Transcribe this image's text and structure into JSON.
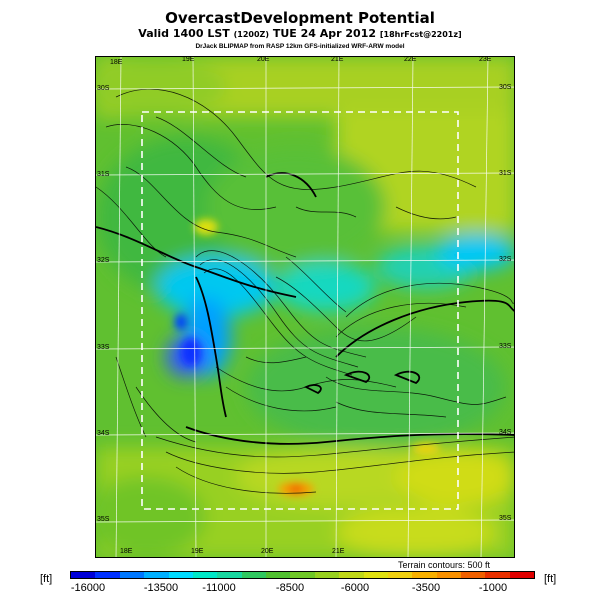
{
  "header": {
    "title": "OvercastDevelopment Potential",
    "valid_main": "Valid 1400 LST",
    "valid_code": "(1200Z)",
    "valid_date": "TUE 24 Apr 2012",
    "forecast": "[18hrFcst@2201z]",
    "credit": "DrJack BLIPMAP from RASP 12km GFS-initialized WRF-ARW model"
  },
  "map": {
    "lon_labels_top": [
      "18E",
      "19E",
      "20E",
      "21E",
      "22E",
      "23E"
    ],
    "lon_labels_bottom": [
      "18E",
      "19E",
      "20E",
      "21E"
    ],
    "lat_labels_left": [
      "30S",
      "31S",
      "32S",
      "33S",
      "34S",
      "35S"
    ],
    "lat_labels_right": [
      "30S",
      "31S",
      "32S",
      "33S",
      "34S",
      "35S"
    ],
    "terrain_note": "Terrain contours: 500 ft"
  },
  "legend": {
    "unit_left": "[ft]",
    "unit_right": "[ft]",
    "ticks": [
      "-16000",
      "-13500",
      "-11000",
      "-8500",
      "-6000",
      "-3500",
      "-1000"
    ],
    "colors": [
      "#0000d8",
      "#0030ff",
      "#0078ff",
      "#00b0ff",
      "#00dcff",
      "#00e8c8",
      "#18d8a0",
      "#30c860",
      "#50c030",
      "#70c828",
      "#98d020",
      "#c0d818",
      "#e0e010",
      "#f0d010",
      "#f8b000",
      "#f89000",
      "#f06000",
      "#e83000",
      "#e00000"
    ]
  }
}
